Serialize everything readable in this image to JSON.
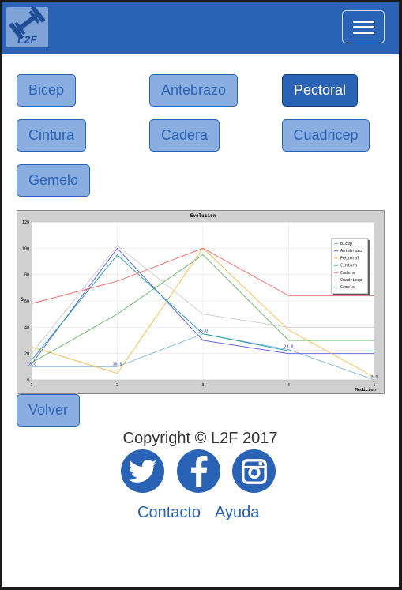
{
  "header": {
    "logo_text": "L2F",
    "menu_icon": "hamburger-icon"
  },
  "muscles": {
    "bicep": "Bicep",
    "antebrazo": "Antebrazo",
    "pectoral": "Pectoral",
    "cintura": "Cintura",
    "cadera": "Cadera",
    "cuadricep": "Cuadricep",
    "gemelo": "Gemelo",
    "selected": "Pectoral"
  },
  "chart_data": {
    "type": "line",
    "title": "Evolucion",
    "xlabel": "Medicion",
    "ylabel": "S",
    "x": [
      1,
      2,
      3,
      4,
      5
    ],
    "xlim": [
      1,
      5
    ],
    "ylim": [
      0,
      120
    ],
    "yticks": [
      0,
      20,
      40,
      60,
      80,
      100,
      120
    ],
    "grid": true,
    "legend_position": "top-right",
    "series": [
      {
        "name": "Bicep",
        "color": "#7fb2e0",
        "values": [
          10,
          10,
          35,
          23,
          0
        ]
      },
      {
        "name": "Antebrazo",
        "color": "#5555dd",
        "values": [
          12,
          100,
          30,
          20,
          20
        ]
      },
      {
        "name": "Pectoral",
        "color": "#f2b84b",
        "values": [
          25,
          5,
          100,
          38,
          2
        ]
      },
      {
        "name": "Cintura",
        "color": "#1e9aa0",
        "values": [
          15,
          95,
          35,
          22,
          22
        ]
      },
      {
        "name": "Cadera",
        "color": "#f06060",
        "values": [
          58,
          75,
          100,
          64,
          64
        ]
      },
      {
        "name": "Cuadricep",
        "color": "#cccccc",
        "values": [
          20,
          102,
          50,
          40,
          40
        ]
      },
      {
        "name": "Gemelo",
        "color": "#66b266",
        "values": [
          13,
          50,
          95,
          30,
          30
        ]
      }
    ],
    "annotations": [
      {
        "x": 1,
        "y": 10,
        "text": "10.0"
      },
      {
        "x": 2,
        "y": 10,
        "text": "10.0"
      },
      {
        "x": 3,
        "y": 35,
        "text": "35.0"
      },
      {
        "x": 4,
        "y": 23,
        "text": "23.0"
      },
      {
        "x": 5,
        "y": 0,
        "text": "0.0"
      }
    ]
  },
  "actions": {
    "back_label": "Volver"
  },
  "footer": {
    "copyright": "Copyright © L2F 2017",
    "social": [
      "twitter-icon",
      "facebook-icon",
      "instagram-icon"
    ],
    "contact_label": "Contacto",
    "help_label": "Ayuda"
  },
  "colors": {
    "brand": "#2a62b5",
    "button_bg": "#8aaee0"
  }
}
